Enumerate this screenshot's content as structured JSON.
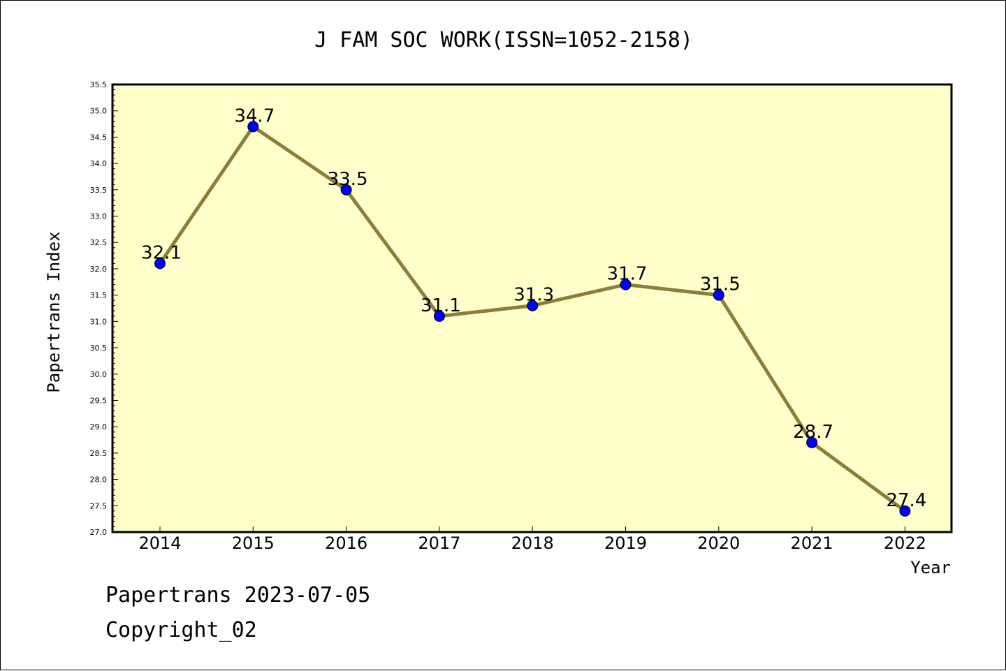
{
  "footer": {
    "line1": "Papertrans 2023-07-05",
    "line2": "Copyright_02"
  },
  "chart_data": {
    "type": "line",
    "title": "J FAM SOC WORK(ISSN=1052-2158)",
    "xlabel": "Year",
    "ylabel": "Papertrans Index",
    "categories": [
      "2014",
      "2015",
      "2016",
      "2017",
      "2018",
      "2019",
      "2020",
      "2021",
      "2022"
    ],
    "values": [
      32.1,
      34.7,
      33.5,
      31.1,
      31.3,
      31.7,
      31.5,
      28.7,
      27.4
    ],
    "data_labels": [
      "32.1",
      "34.7",
      "33.5",
      "31.1",
      "31.3",
      "31.7",
      "31.5",
      "28.7",
      "27.4"
    ],
    "ylim": [
      27.0,
      35.5
    ],
    "yticks": [
      "27.0",
      "27.5",
      "28.0",
      "28.5",
      "29.0",
      "29.5",
      "30.0",
      "30.5",
      "31.0",
      "31.5",
      "32.0",
      "32.5",
      "33.0",
      "33.5",
      "34.0",
      "34.5",
      "35.0",
      "35.5"
    ],
    "grid": false,
    "colors": {
      "plot_background": "#ffffcc",
      "line": "#8b7d3a",
      "marker": "#0000ff"
    }
  }
}
